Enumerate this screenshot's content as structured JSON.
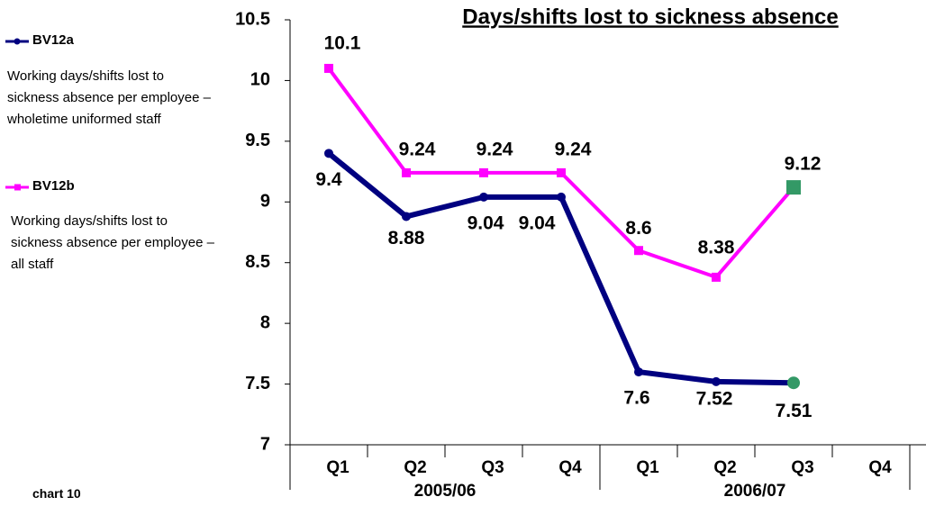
{
  "chart_data": {
    "type": "line",
    "title": "Days/shifts lost to sickness absence",
    "categories": [
      "Q1",
      "Q2",
      "Q3",
      "Q4",
      "Q1",
      "Q2",
      "Q3",
      "Q4"
    ],
    "category_groups": [
      "2005/06",
      "2006/07"
    ],
    "series": [
      {
        "name": "BV12a",
        "color": "#000080",
        "description": "Working days/shifts lost to sickness absence per employee – wholetime uniformed staff",
        "values": [
          9.4,
          8.88,
          9.04,
          9.04,
          7.6,
          7.52,
          7.51,
          null
        ]
      },
      {
        "name": "BV12b",
        "color": "#ff00ff",
        "description": "Working days/shifts lost to sickness absence per employee – all staff",
        "values": [
          10.1,
          9.24,
          9.24,
          9.24,
          8.6,
          8.38,
          9.12,
          null
        ]
      }
    ],
    "last_marker_color": "#339966",
    "ylim": [
      7,
      10.5
    ],
    "yticks": [
      7,
      7.5,
      8,
      8.5,
      9,
      9.5,
      10,
      10.5
    ],
    "footnote": "chart 10"
  }
}
